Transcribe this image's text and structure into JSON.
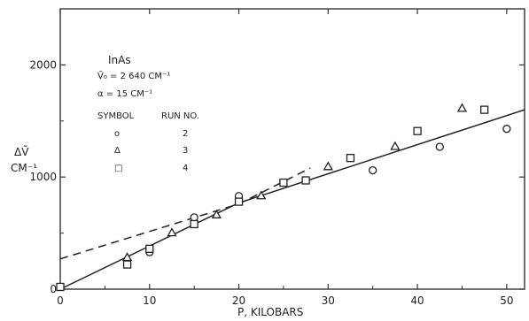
{
  "chart_data": {
    "type": "scatter",
    "title": "",
    "xlabel": "P, KILOBARS",
    "ylabel_top": "ΔṼ",
    "ylabel_bottom": "CM⁻¹",
    "xlim": [
      0,
      52
    ],
    "ylim": [
      0,
      2500
    ],
    "x_ticks": [
      0,
      10,
      20,
      30,
      40,
      50
    ],
    "x_tick_labels": [
      "0",
      "10",
      "20",
      "30",
      "40",
      "50"
    ],
    "y_ticks": [
      0,
      1000,
      2000
    ],
    "y_tick_labels": [
      "0",
      "1000",
      "2000"
    ],
    "annotations": {
      "material": "InAs",
      "nu0": "Ṽ₀ = 2 640 CM⁻¹",
      "alpha": "α = 15 CM⁻¹",
      "header_symbol": "SYMBOL",
      "header_run": "RUN NO.",
      "runs": [
        {
          "symbol": "circle",
          "glyph": "o",
          "run": "2"
        },
        {
          "symbol": "triangle",
          "glyph": "Δ",
          "run": "3"
        },
        {
          "symbol": "square",
          "glyph": "□",
          "run": "4"
        }
      ]
    },
    "series": [
      {
        "run": "2",
        "marker": "circle",
        "points": [
          [
            7.5,
            230
          ],
          [
            10,
            330
          ],
          [
            15,
            640
          ],
          [
            20,
            830
          ],
          [
            35,
            1060
          ],
          [
            42.5,
            1270
          ],
          [
            50,
            1430
          ]
        ]
      },
      {
        "run": "3",
        "marker": "triangle",
        "points": [
          [
            7.5,
            280
          ],
          [
            12.5,
            500
          ],
          [
            17.5,
            660
          ],
          [
            22.5,
            830
          ],
          [
            30,
            1090
          ],
          [
            37.5,
            1270
          ],
          [
            45,
            1610
          ]
        ]
      },
      {
        "run": "4",
        "marker": "square",
        "points": [
          [
            0,
            20
          ],
          [
            7.5,
            220
          ],
          [
            10,
            360
          ],
          [
            15,
            580
          ],
          [
            20,
            780
          ],
          [
            25,
            950
          ],
          [
            27.5,
            970
          ],
          [
            32.5,
            1170
          ],
          [
            40,
            1410
          ],
          [
            47.5,
            1600
          ]
        ]
      }
    ],
    "lines": [
      {
        "style": "solid",
        "points": [
          [
            0,
            0
          ],
          [
            20,
            770
          ],
          [
            52,
            1600
          ]
        ]
      },
      {
        "style": "dashed",
        "points": [
          [
            0,
            270
          ],
          [
            20,
            760
          ],
          [
            28,
            1080
          ]
        ]
      }
    ],
    "grid": false
  }
}
